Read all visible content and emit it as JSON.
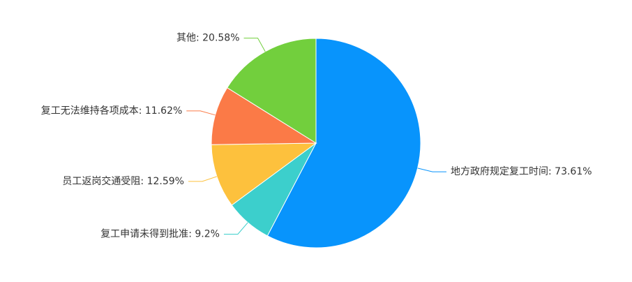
{
  "chart_data": {
    "type": "pie",
    "categories": [
      "地方政府规定复工时间",
      "复工申请未得到批准",
      "员工返岗交通受阻",
      "复工无法维持各项成本",
      "其他"
    ],
    "values": [
      73.61,
      9.2,
      12.59,
      11.62,
      20.58
    ],
    "value_labels": [
      "73.61%",
      "9.2%",
      "12.59%",
      "11.62%",
      "20.58%"
    ],
    "label_separator": ": ",
    "colors": [
      "#0894fc",
      "#3ccfcc",
      "#fdc13d",
      "#fb7a47",
      "#72cf3d"
    ]
  }
}
